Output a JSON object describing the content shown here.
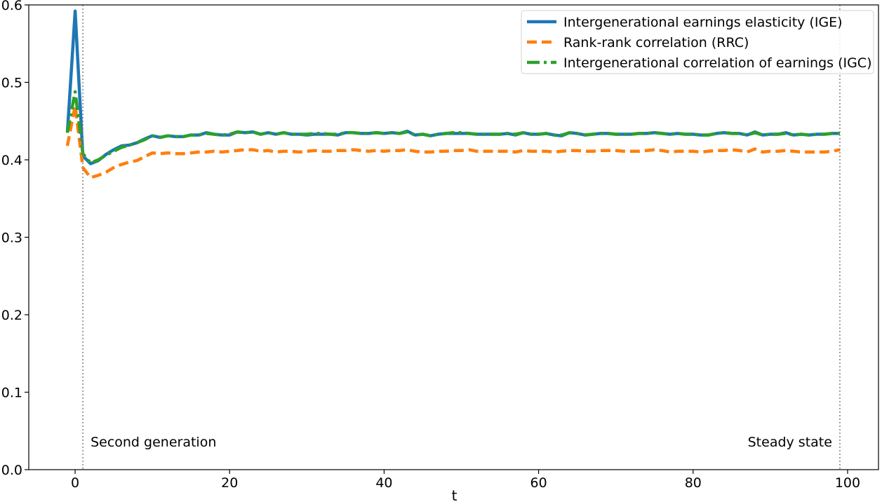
{
  "chart_data": {
    "type": "line",
    "xlabel": "t",
    "ylabel": "",
    "xlim": [
      -6,
      104
    ],
    "ylim": [
      0.0,
      0.6
    ],
    "xticks": [
      0,
      20,
      40,
      60,
      80,
      100
    ],
    "yticks": [
      0.0,
      0.1,
      0.2,
      0.3,
      0.4,
      0.5,
      0.6
    ],
    "xtick_labels": [
      "0",
      "20",
      "40",
      "60",
      "80",
      "100"
    ],
    "ytick_labels": [
      "0.0",
      "0.1",
      "0.2",
      "0.3",
      "0.4",
      "0.5",
      "0.6"
    ],
    "legend_position": "top-right",
    "grid": false,
    "vlines": [
      {
        "x": 1,
        "label": "Second generation",
        "label_side": "right"
      },
      {
        "x": 99,
        "label": "Steady state",
        "label_side": "left"
      }
    ],
    "series": [
      {
        "name": "Intergenerational earnings elasticity (IGE)",
        "color": "#1f77b4",
        "style": "solid",
        "x": [
          -1,
          0,
          1,
          2,
          3,
          4,
          5,
          6,
          7,
          8,
          9,
          10,
          11,
          12,
          13,
          14,
          15,
          16,
          17,
          18,
          19,
          20,
          21,
          22,
          23,
          24,
          25,
          26,
          27,
          28,
          29,
          30,
          31,
          32,
          33,
          34,
          35,
          36,
          37,
          38,
          39,
          40,
          41,
          42,
          43,
          44,
          45,
          46,
          47,
          48,
          49,
          50,
          51,
          52,
          53,
          54,
          55,
          56,
          57,
          58,
          59,
          60,
          61,
          62,
          63,
          64,
          65,
          66,
          67,
          68,
          69,
          70,
          71,
          72,
          73,
          74,
          75,
          76,
          77,
          78,
          79,
          80,
          81,
          82,
          83,
          84,
          85,
          86,
          87,
          88,
          89,
          90,
          91,
          92,
          93,
          94,
          95,
          96,
          97,
          98,
          99
        ],
        "y": [
          0.435,
          0.592,
          0.405,
          0.395,
          0.399,
          0.407,
          0.413,
          0.418,
          0.419,
          0.422,
          0.427,
          0.431,
          0.429,
          0.431,
          0.43,
          0.43,
          0.432,
          0.432,
          0.435,
          0.433,
          0.432,
          0.432,
          0.436,
          0.435,
          0.436,
          0.433,
          0.435,
          0.433,
          0.435,
          0.433,
          0.433,
          0.432,
          0.433,
          0.433,
          0.433,
          0.432,
          0.435,
          0.435,
          0.434,
          0.434,
          0.435,
          0.434,
          0.435,
          0.434,
          0.437,
          0.432,
          0.433,
          0.431,
          0.433,
          0.434,
          0.434,
          0.434,
          0.434,
          0.433,
          0.433,
          0.433,
          0.433,
          0.434,
          0.432,
          0.435,
          0.433,
          0.433,
          0.434,
          0.432,
          0.431,
          0.435,
          0.434,
          0.432,
          0.433,
          0.434,
          0.434,
          0.433,
          0.433,
          0.433,
          0.434,
          0.434,
          0.435,
          0.434,
          0.433,
          0.434,
          0.433,
          0.433,
          0.432,
          0.432,
          0.434,
          0.435,
          0.434,
          0.434,
          0.432,
          0.436,
          0.432,
          0.433,
          0.433,
          0.435,
          0.432,
          0.433,
          0.432,
          0.433,
          0.433,
          0.434,
          0.434
        ]
      },
      {
        "name": "Rank-rank correlation (RRC)",
        "color": "#ff7f0e",
        "style": "dashed",
        "x": [
          -1,
          0,
          1,
          2,
          3,
          4,
          5,
          6,
          7,
          8,
          9,
          10,
          11,
          12,
          13,
          14,
          15,
          16,
          17,
          18,
          19,
          20,
          21,
          22,
          23,
          24,
          25,
          26,
          27,
          28,
          29,
          30,
          31,
          32,
          33,
          34,
          35,
          36,
          37,
          38,
          39,
          40,
          41,
          42,
          43,
          44,
          45,
          46,
          47,
          48,
          49,
          50,
          51,
          52,
          53,
          54,
          55,
          56,
          57,
          58,
          59,
          60,
          61,
          62,
          63,
          64,
          65,
          66,
          67,
          68,
          69,
          70,
          71,
          72,
          73,
          74,
          75,
          76,
          77,
          78,
          79,
          80,
          81,
          82,
          83,
          84,
          85,
          86,
          87,
          88,
          89,
          90,
          91,
          92,
          93,
          94,
          95,
          96,
          97,
          98,
          99
        ],
        "y": [
          0.418,
          0.47,
          0.39,
          0.377,
          0.38,
          0.384,
          0.39,
          0.394,
          0.397,
          0.399,
          0.404,
          0.409,
          0.408,
          0.409,
          0.408,
          0.408,
          0.409,
          0.41,
          0.41,
          0.411,
          0.41,
          0.411,
          0.412,
          0.413,
          0.413,
          0.411,
          0.412,
          0.41,
          0.411,
          0.411,
          0.41,
          0.411,
          0.412,
          0.411,
          0.411,
          0.412,
          0.412,
          0.413,
          0.412,
          0.411,
          0.412,
          0.411,
          0.412,
          0.412,
          0.413,
          0.411,
          0.41,
          0.41,
          0.411,
          0.411,
          0.412,
          0.412,
          0.413,
          0.411,
          0.411,
          0.411,
          0.411,
          0.411,
          0.41,
          0.412,
          0.411,
          0.411,
          0.411,
          0.41,
          0.411,
          0.412,
          0.412,
          0.411,
          0.411,
          0.412,
          0.412,
          0.412,
          0.411,
          0.411,
          0.411,
          0.412,
          0.413,
          0.412,
          0.41,
          0.411,
          0.411,
          0.411,
          0.41,
          0.411,
          0.412,
          0.412,
          0.413,
          0.412,
          0.41,
          0.414,
          0.41,
          0.411,
          0.411,
          0.412,
          0.411,
          0.41,
          0.41,
          0.41,
          0.41,
          0.411,
          0.413
        ]
      },
      {
        "name": "Intergenerational correlation of earnings (IGC)",
        "color": "#2ca02c",
        "style": "dashdot",
        "x": [
          -1,
          0,
          1,
          2,
          3,
          4,
          5,
          6,
          7,
          8,
          9,
          10,
          11,
          12,
          13,
          14,
          15,
          16,
          17,
          18,
          19,
          20,
          21,
          22,
          23,
          24,
          25,
          26,
          27,
          28,
          29,
          30,
          31,
          32,
          33,
          34,
          35,
          36,
          37,
          38,
          39,
          40,
          41,
          42,
          43,
          44,
          45,
          46,
          47,
          48,
          49,
          50,
          51,
          52,
          53,
          54,
          55,
          56,
          57,
          58,
          59,
          60,
          61,
          62,
          63,
          64,
          65,
          66,
          67,
          68,
          69,
          70,
          71,
          72,
          73,
          74,
          75,
          76,
          77,
          78,
          79,
          80,
          81,
          82,
          83,
          84,
          85,
          86,
          87,
          88,
          89,
          90,
          91,
          92,
          93,
          94,
          95,
          96,
          97,
          98,
          99
        ],
        "y": [
          0.435,
          0.488,
          0.408,
          0.396,
          0.4,
          0.406,
          0.411,
          0.416,
          0.419,
          0.422,
          0.426,
          0.431,
          0.429,
          0.431,
          0.43,
          0.43,
          0.432,
          0.432,
          0.434,
          0.433,
          0.432,
          0.433,
          0.436,
          0.435,
          0.436,
          0.433,
          0.435,
          0.433,
          0.435,
          0.433,
          0.433,
          0.433,
          0.434,
          0.434,
          0.433,
          0.433,
          0.435,
          0.435,
          0.434,
          0.434,
          0.435,
          0.434,
          0.435,
          0.434,
          0.436,
          0.432,
          0.433,
          0.431,
          0.433,
          0.434,
          0.435,
          0.435,
          0.434,
          0.433,
          0.433,
          0.433,
          0.433,
          0.434,
          0.433,
          0.435,
          0.433,
          0.433,
          0.434,
          0.432,
          0.432,
          0.435,
          0.434,
          0.432,
          0.433,
          0.434,
          0.434,
          0.433,
          0.433,
          0.433,
          0.434,
          0.434,
          0.435,
          0.434,
          0.433,
          0.434,
          0.433,
          0.433,
          0.432,
          0.432,
          0.434,
          0.435,
          0.434,
          0.434,
          0.432,
          0.435,
          0.432,
          0.433,
          0.433,
          0.434,
          0.432,
          0.433,
          0.432,
          0.433,
          0.433,
          0.434,
          0.434
        ]
      }
    ]
  }
}
